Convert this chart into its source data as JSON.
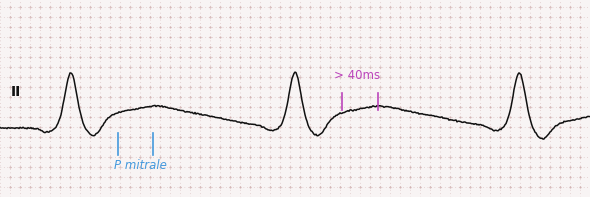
{
  "background_color": "#f8f4f4",
  "grid_dot_color": "#c8a0a0",
  "ecg_color": "#111111",
  "lead_label": "II",
  "lead_label_color": "#111111",
  "annotation_p_mitrale_color": "#4499dd",
  "annotation_40ms_color": "#bb44bb",
  "annotation_p_mitrale_text": "P mitrale",
  "annotation_40ms_text": "> 40ms",
  "line_width": 1.1,
  "figsize": [
    5.9,
    1.97
  ],
  "dpi": 100,
  "xlim": [
    0,
    590
  ],
  "ylim": [
    0,
    197
  ]
}
